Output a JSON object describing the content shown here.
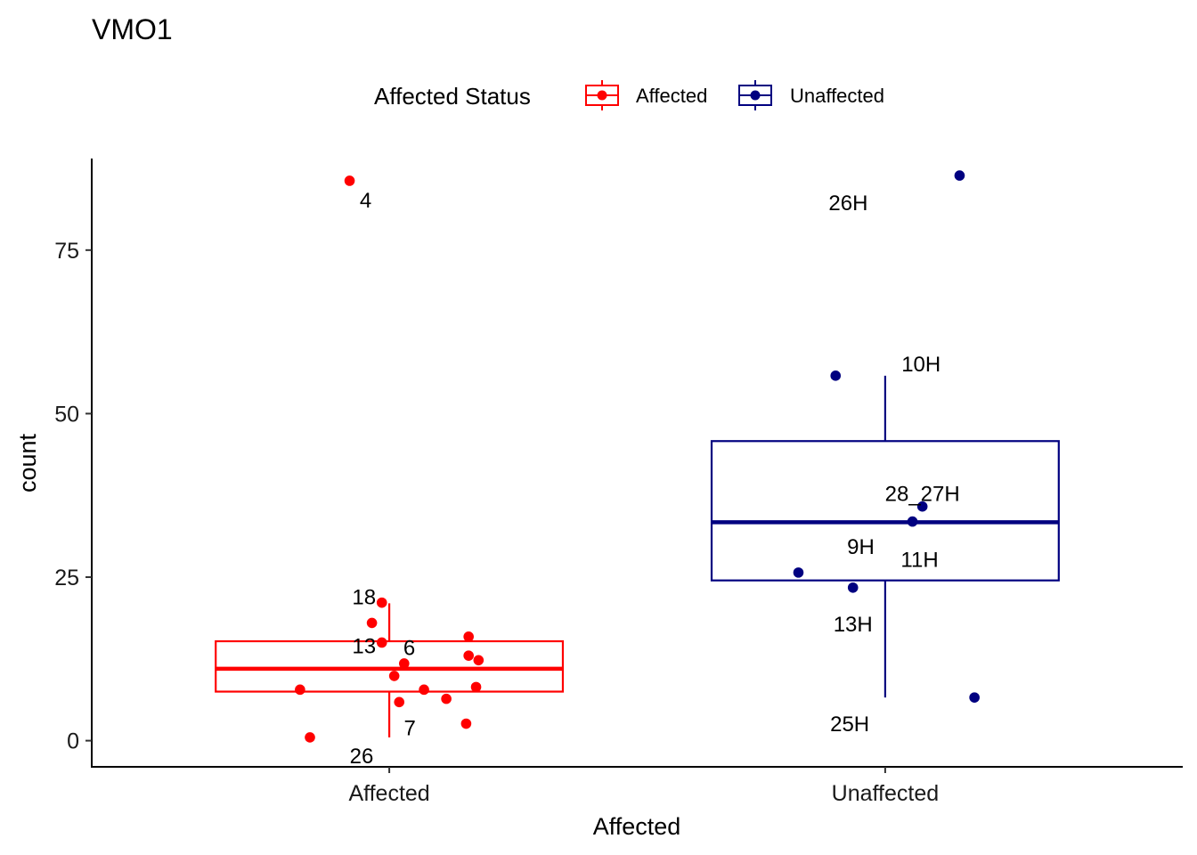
{
  "chart_data": {
    "type": "box",
    "title": "VMO1",
    "xlabel": "Affected",
    "ylabel": "count",
    "categories": [
      "Affected",
      "Unaffected"
    ],
    "ylim": [
      -4,
      89
    ],
    "yticks": [
      0,
      25,
      50,
      75
    ],
    "grid": false,
    "legend": {
      "title": "Affected Status",
      "position": "top",
      "items": [
        {
          "label": "Affected",
          "color": "#ff0000"
        },
        {
          "label": "Unaffected",
          "color": "#000080"
        }
      ]
    },
    "boxes": [
      {
        "category": "Affected",
        "color": "#ff0000",
        "whisker_low": 0.5,
        "q1": 7.5,
        "median": 11,
        "q3": 15.2,
        "whisker_high": 21
      },
      {
        "category": "Unaffected",
        "color": "#000080",
        "whisker_low": 6.6,
        "q1": 24.5,
        "median": 33.4,
        "q3": 45.8,
        "whisker_high": 55.8
      }
    ],
    "points": [
      {
        "category": "Affected",
        "jitter": -0.08,
        "y": 85.6,
        "label": "4",
        "label_dx": 18,
        "label_dy": 22
      },
      {
        "category": "Affected",
        "jitter": -0.015,
        "y": 21.1,
        "label": "18",
        "label_dx": -20,
        "label_dy": -6
      },
      {
        "category": "Affected",
        "jitter": -0.035,
        "y": 18.0,
        "label": "6",
        "label_dx": 42,
        "label_dy": 28
      },
      {
        "category": "Affected",
        "jitter": -0.015,
        "y": 15.0,
        "label": "13",
        "label_dx": -20,
        "label_dy": 4
      },
      {
        "category": "Affected",
        "jitter": 0.16,
        "y": 15.9,
        "label": "",
        "label_dx": 0,
        "label_dy": 0
      },
      {
        "category": "Affected",
        "jitter": 0.16,
        "y": 13.0,
        "label": "",
        "label_dx": 0,
        "label_dy": 0
      },
      {
        "category": "Affected",
        "jitter": 0.18,
        "y": 12.3,
        "label": "",
        "label_dx": 0,
        "label_dy": 0
      },
      {
        "category": "Affected",
        "jitter": 0.03,
        "y": 11.8,
        "label": "",
        "label_dx": 0,
        "label_dy": 0
      },
      {
        "category": "Affected",
        "jitter": 0.01,
        "y": 9.9,
        "label": "",
        "label_dx": 0,
        "label_dy": 0
      },
      {
        "category": "Affected",
        "jitter": -0.18,
        "y": 7.8,
        "label": "",
        "label_dx": 0,
        "label_dy": 0
      },
      {
        "category": "Affected",
        "jitter": 0.07,
        "y": 7.8,
        "label": "",
        "label_dx": 0,
        "label_dy": 0
      },
      {
        "category": "Affected",
        "jitter": 0.175,
        "y": 8.2,
        "label": "",
        "label_dx": 0,
        "label_dy": 0
      },
      {
        "category": "Affected",
        "jitter": 0.115,
        "y": 6.4,
        "label": "",
        "label_dx": 0,
        "label_dy": 0
      },
      {
        "category": "Affected",
        "jitter": 0.02,
        "y": 5.9,
        "label": "7",
        "label_dx": 12,
        "label_dy": 29
      },
      {
        "category": "Affected",
        "jitter": 0.155,
        "y": 2.6,
        "label": "",
        "label_dx": 0,
        "label_dy": 0
      },
      {
        "category": "Affected",
        "jitter": -0.16,
        "y": 0.5,
        "label": "26",
        "label_dx": 58,
        "label_dy": 21
      },
      {
        "category": "Unaffected",
        "jitter": 0.15,
        "y": 86.4,
        "label": "26H",
        "label_dx": -125,
        "label_dy": 31
      },
      {
        "category": "Unaffected",
        "jitter": -0.1,
        "y": 55.8,
        "label": "10H",
        "label_dx": 96,
        "label_dy": -13
      },
      {
        "category": "Unaffected",
        "jitter": 0.075,
        "y": 35.8,
        "label": "28_27H",
        "label_dx": 0,
        "label_dy": -14
      },
      {
        "category": "Unaffected",
        "jitter": 0.055,
        "y": 33.5,
        "label": "11H",
        "label_dx": 8,
        "label_dy": 43
      },
      {
        "category": "Unaffected",
        "jitter": -0.175,
        "y": 25.7,
        "label": "9H",
        "label_dx": 70,
        "label_dy": -29
      },
      {
        "category": "Unaffected",
        "jitter": -0.065,
        "y": 23.4,
        "label": "13H",
        "label_dx": 0,
        "label_dy": 41
      },
      {
        "category": "Unaffected",
        "jitter": 0.18,
        "y": 6.6,
        "label": "25H",
        "label_dx": -140,
        "label_dy": 30
      }
    ]
  }
}
